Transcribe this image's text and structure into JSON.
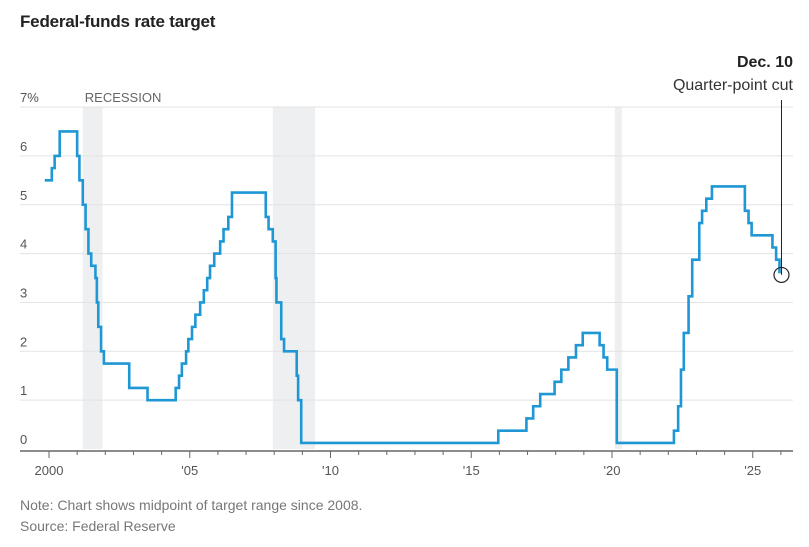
{
  "header": {
    "title": "Federal-funds rate target"
  },
  "annotation": {
    "date": "Dec. 10",
    "text": "Quarter-point cut"
  },
  "footer": {
    "note": "Note: Chart shows midpoint of target range since 2008.",
    "source": "Source: Federal Reserve"
  },
  "chart_data": {
    "type": "line",
    "step": true,
    "title": "Federal-funds rate target",
    "xlabel": "",
    "ylabel": "",
    "xlim": [
      1999.6,
      2026.6
    ],
    "ylim": [
      0,
      7
    ],
    "grid": true,
    "y_ticks": [
      {
        "value": 0,
        "label": "0"
      },
      {
        "value": 1,
        "label": "1"
      },
      {
        "value": 2,
        "label": "2"
      },
      {
        "value": 3,
        "label": "3"
      },
      {
        "value": 4,
        "label": "4"
      },
      {
        "value": 5,
        "label": "5"
      },
      {
        "value": 6,
        "label": "6"
      },
      {
        "value": 7,
        "label": "7%"
      }
    ],
    "x_ticks": [
      {
        "value": 2000,
        "label": "2000"
      },
      {
        "value": 2005,
        "label": "'05"
      },
      {
        "value": 2010,
        "label": "'10"
      },
      {
        "value": 2015,
        "label": "'15"
      },
      {
        "value": 2020,
        "label": "'20"
      },
      {
        "value": 2025,
        "label": "'25"
      }
    ],
    "minor_x_ticks": [
      2001,
      2002,
      2003,
      2004,
      2006,
      2007,
      2008,
      2009,
      2011,
      2012,
      2013,
      2014,
      2016,
      2017,
      2018,
      2019,
      2021,
      2022,
      2023,
      2024,
      2026
    ],
    "recessions": [
      {
        "label": "RECESSION",
        "start": 2001.2,
        "end": 2001.9
      },
      {
        "start": 2007.95,
        "end": 2009.45
      },
      {
        "start": 2020.1,
        "end": 2020.35
      }
    ],
    "series": [
      {
        "name": "Federal-funds rate target",
        "color": "#1e97d4",
        "points": [
          [
            1999.85,
            5.5
          ],
          [
            2000.1,
            5.75
          ],
          [
            2000.2,
            6.0
          ],
          [
            2000.38,
            6.5
          ],
          [
            2001.0,
            6.0
          ],
          [
            2001.08,
            5.5
          ],
          [
            2001.2,
            5.0
          ],
          [
            2001.3,
            4.5
          ],
          [
            2001.4,
            4.0
          ],
          [
            2001.5,
            3.75
          ],
          [
            2001.65,
            3.5
          ],
          [
            2001.7,
            3.0
          ],
          [
            2001.75,
            2.5
          ],
          [
            2001.85,
            2.0
          ],
          [
            2001.95,
            1.75
          ],
          [
            2002.85,
            1.25
          ],
          [
            2003.5,
            1.0
          ],
          [
            2004.5,
            1.25
          ],
          [
            2004.62,
            1.5
          ],
          [
            2004.72,
            1.75
          ],
          [
            2004.87,
            2.0
          ],
          [
            2004.95,
            2.25
          ],
          [
            2005.08,
            2.5
          ],
          [
            2005.2,
            2.75
          ],
          [
            2005.37,
            3.0
          ],
          [
            2005.5,
            3.25
          ],
          [
            2005.62,
            3.5
          ],
          [
            2005.72,
            3.75
          ],
          [
            2005.87,
            4.0
          ],
          [
            2006.08,
            4.25
          ],
          [
            2006.2,
            4.5
          ],
          [
            2006.37,
            4.75
          ],
          [
            2006.5,
            5.25
          ],
          [
            2007.7,
            4.75
          ],
          [
            2007.8,
            4.5
          ],
          [
            2007.95,
            4.25
          ],
          [
            2008.05,
            3.5
          ],
          [
            2008.08,
            3.0
          ],
          [
            2008.25,
            2.25
          ],
          [
            2008.35,
            2.0
          ],
          [
            2008.8,
            1.5
          ],
          [
            2008.85,
            1.0
          ],
          [
            2008.96,
            0.125
          ],
          [
            2015.96,
            0.375
          ],
          [
            2016.96,
            0.625
          ],
          [
            2017.2,
            0.875
          ],
          [
            2017.45,
            1.125
          ],
          [
            2017.96,
            1.375
          ],
          [
            2018.2,
            1.625
          ],
          [
            2018.45,
            1.875
          ],
          [
            2018.72,
            2.125
          ],
          [
            2018.96,
            2.375
          ],
          [
            2019.56,
            2.125
          ],
          [
            2019.7,
            1.875
          ],
          [
            2019.83,
            1.625
          ],
          [
            2020.17,
            0.125
          ],
          [
            2022.2,
            0.375
          ],
          [
            2022.35,
            0.875
          ],
          [
            2022.45,
            1.625
          ],
          [
            2022.55,
            2.375
          ],
          [
            2022.72,
            3.125
          ],
          [
            2022.85,
            3.875
          ],
          [
            2023.1,
            4.625
          ],
          [
            2023.2,
            4.875
          ],
          [
            2023.35,
            5.125
          ],
          [
            2023.55,
            5.375
          ],
          [
            2024.72,
            4.875
          ],
          [
            2024.85,
            4.625
          ],
          [
            2024.96,
            4.375
          ],
          [
            2025.7,
            4.125
          ],
          [
            2025.83,
            3.875
          ],
          [
            2025.95,
            3.625
          ]
        ],
        "end": [
          2026.0,
          3.625
        ]
      }
    ],
    "annotations": [
      {
        "x": 2025.95,
        "y": 3.625,
        "title": "Dec. 10",
        "text": "Quarter-point cut",
        "marker": "circle"
      }
    ]
  }
}
